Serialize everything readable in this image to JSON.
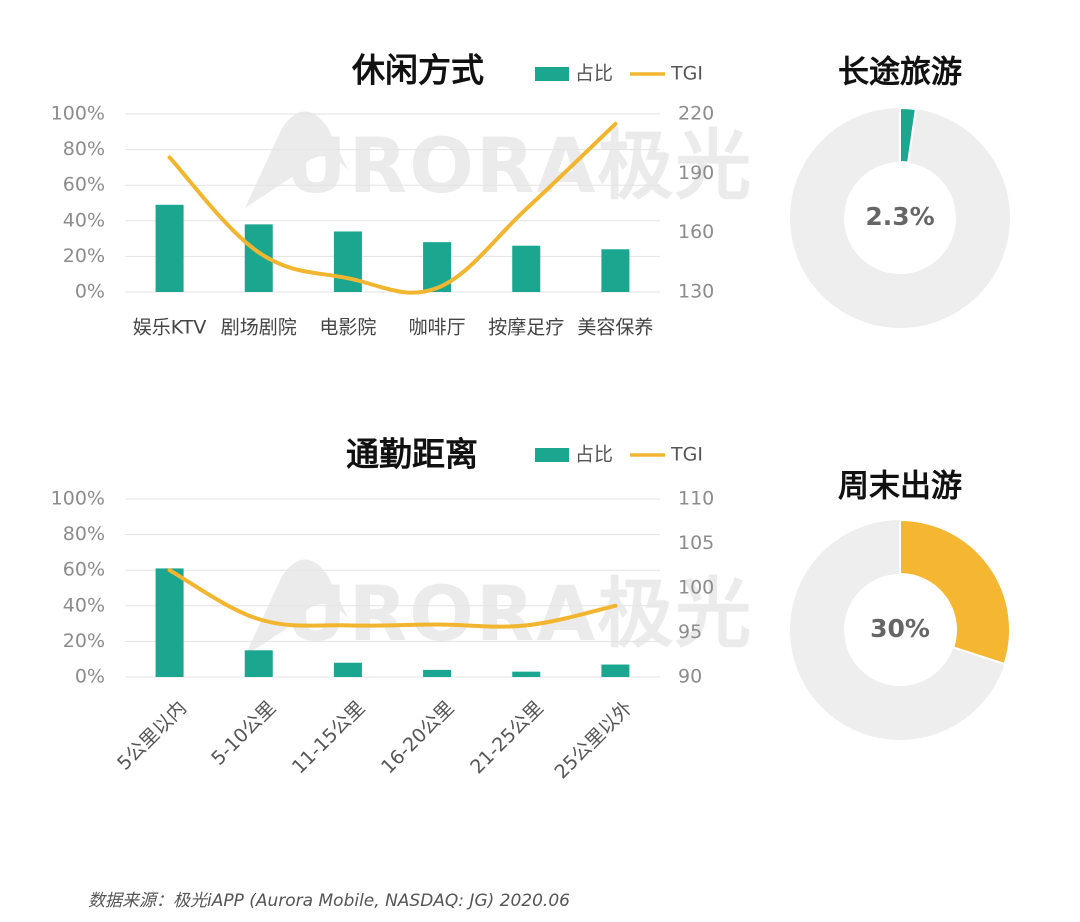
{
  "colors": {
    "bar": "#1aa68f",
    "line": "#f2b530",
    "donut_track": "#eeeeee",
    "donut_teal": "#1aa68f",
    "donut_orange": "#f5b731",
    "axis_text": "#8c8c8c",
    "grid": "#e3e3e3",
    "watermark": "#e9e9e9"
  },
  "watermark": {
    "text": "URORA极光"
  },
  "legend": {
    "bar_label": "占比",
    "line_label": "TGI"
  },
  "chart_data": [
    {
      "id": "leisure",
      "type": "bar",
      "title": "休闲方式",
      "categories": [
        "娱乐KTV",
        "剧场剧院",
        "电影院",
        "咖啡厅",
        "按摩足疗",
        "美容保养"
      ],
      "series": [
        {
          "name": "占比",
          "type": "bar",
          "axis": "left",
          "values": [
            49,
            38,
            34,
            28,
            26,
            24
          ]
        },
        {
          "name": "TGI",
          "type": "line",
          "axis": "right",
          "values": [
            198,
            150,
            137,
            132,
            172,
            215
          ]
        }
      ],
      "left_axis": {
        "range": [
          0,
          100
        ],
        "ticks": [
          "0%",
          "20%",
          "40%",
          "60%",
          "80%",
          "100%"
        ]
      },
      "right_axis": {
        "range": [
          130,
          220
        ],
        "ticks": [
          "130",
          "160",
          "190",
          "220"
        ]
      },
      "grid": true,
      "legend_position": "top-right"
    },
    {
      "id": "commute",
      "type": "bar",
      "title": "通勤距离",
      "categories": [
        "5公里以内",
        "5-10公里",
        "11-15公里",
        "16-20公里",
        "21-25公里",
        "25公里以外"
      ],
      "series": [
        {
          "name": "占比",
          "type": "bar",
          "axis": "left",
          "values": [
            61,
            15,
            8,
            4,
            3,
            7
          ]
        },
        {
          "name": "TGI",
          "type": "line",
          "axis": "right",
          "values": [
            102,
            96.5,
            95.8,
            95.9,
            95.8,
            98
          ]
        }
      ],
      "left_axis": {
        "range": [
          0,
          100
        ],
        "ticks": [
          "0%",
          "20%",
          "40%",
          "60%",
          "80%",
          "100%"
        ]
      },
      "right_axis": {
        "range": [
          90,
          110
        ],
        "ticks": [
          "90",
          "95",
          "100",
          "105",
          "110"
        ]
      },
      "grid": true,
      "legend_position": "top-right"
    },
    {
      "id": "long_trip",
      "type": "pie",
      "title": "长途旅游",
      "value": 2.3,
      "label": "2.3%"
    },
    {
      "id": "weekend_trip",
      "type": "pie",
      "title": "周末出游",
      "value": 30,
      "label": "30%"
    }
  ],
  "source": "数据来源：极光iAPP (Aurora Mobile, NASDAQ: JG) 2020.06"
}
